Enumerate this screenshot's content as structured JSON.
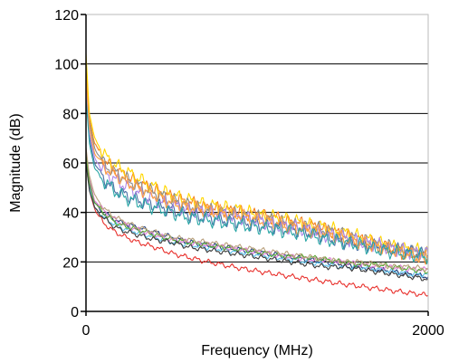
{
  "chart_data": {
    "type": "line",
    "title": "",
    "xlabel": "Frequency (MHz)",
    "ylabel": "Magnitude (dB)",
    "xlim": [
      0,
      2000
    ],
    "ylim": [
      0,
      120
    ],
    "xticks": [
      0,
      2000
    ],
    "yticks": [
      0,
      20,
      40,
      60,
      80,
      100,
      120
    ],
    "grid": "horizontal",
    "legend": "none",
    "series": [
      {
        "color": "#e8302c",
        "x": [
          0,
          10,
          30,
          60,
          100,
          150,
          200,
          300,
          400,
          500,
          600,
          700,
          800,
          900,
          1000,
          1100,
          1200,
          1300,
          1400,
          1500,
          1600,
          1700,
          1800,
          1900,
          2000
        ],
        "y": [
          65,
          54,
          46,
          40,
          36,
          33,
          31,
          28,
          26,
          23.5,
          21.8,
          20.2,
          18.8,
          17.5,
          16.3,
          15.2,
          14.1,
          13.1,
          12.1,
          11.1,
          10.2,
          9.2,
          8.3,
          7.4,
          6.5
        ]
      },
      {
        "color": "#f58220",
        "x": [
          0,
          20,
          50,
          100,
          150,
          200,
          300,
          400,
          500,
          600,
          700,
          800,
          900,
          1000,
          1100,
          1200,
          1300,
          1400,
          1500,
          1600,
          1700,
          1800,
          1900,
          2000
        ],
        "y": [
          98,
          78,
          68,
          62,
          58,
          56,
          52,
          49,
          46,
          44,
          42,
          41,
          40,
          39,
          38,
          36,
          35,
          33,
          31,
          29,
          27,
          25,
          23,
          22
        ]
      },
      {
        "color": "#ffd700",
        "x": [
          0,
          20,
          50,
          100,
          150,
          200,
          300,
          400,
          500,
          600,
          700,
          800,
          900,
          1000,
          1100,
          1200,
          1300,
          1400,
          1500,
          1600,
          1700,
          1800,
          1900,
          2000
        ],
        "y": [
          104,
          80,
          70,
          64,
          60,
          58,
          54,
          50,
          47,
          45,
          43,
          42,
          41,
          39,
          38,
          37,
          35,
          34,
          32,
          30,
          28,
          26,
          25,
          24
        ]
      },
      {
        "color": "#8c8c8c",
        "x": [
          0,
          20,
          50,
          100,
          150,
          200,
          300,
          400,
          500,
          600,
          700,
          800,
          900,
          1000,
          1100,
          1200,
          1300,
          1400,
          1500,
          1600,
          1700,
          1800,
          1900,
          2000
        ],
        "y": [
          92,
          76,
          66,
          60,
          57,
          55,
          51,
          48,
          45,
          43,
          41,
          40,
          39,
          38,
          37,
          35,
          34,
          33,
          31,
          29,
          27,
          26,
          24,
          23
        ]
      },
      {
        "color": "#4a6fa5",
        "x": [
          0,
          20,
          50,
          100,
          150,
          200,
          300,
          400,
          500,
          600,
          700,
          800,
          900,
          1000,
          1100,
          1200,
          1300,
          1400,
          1500,
          1600,
          1700,
          1800,
          1900,
          2000
        ],
        "y": [
          88,
          70,
          60,
          54,
          50,
          48,
          45,
          43,
          41,
          39,
          38,
          37,
          36,
          35,
          34,
          33,
          32,
          30,
          28,
          27,
          26,
          25,
          24,
          23
        ]
      },
      {
        "color": "#1f3d7a",
        "x": [
          0,
          20,
          50,
          100,
          150,
          200,
          300,
          400,
          500,
          600,
          700,
          800,
          900,
          1000,
          1100,
          1200,
          1300,
          1400,
          1500,
          1600,
          1700,
          1800,
          1900,
          2000
        ],
        "y": [
          62,
          52,
          44,
          40,
          38,
          36,
          34,
          32,
          30,
          28,
          27,
          26,
          25,
          24,
          23,
          22,
          21,
          20,
          19,
          18,
          17,
          16,
          15,
          14
        ]
      },
      {
        "color": "#5bc0eb",
        "x": [
          0,
          20,
          50,
          100,
          150,
          200,
          300,
          400,
          500,
          600,
          700,
          800,
          900,
          1000,
          1100,
          1200,
          1300,
          1400,
          1500,
          1600,
          1700,
          1800,
          1900,
          2000
        ],
        "y": [
          60,
          50,
          42,
          38,
          36,
          34,
          32,
          30,
          28,
          27,
          26,
          25,
          24,
          23,
          22,
          21,
          20,
          19,
          18,
          18,
          17,
          16,
          15,
          15
        ]
      },
      {
        "color": "#e07ad8",
        "x": [
          0,
          20,
          50,
          100,
          150,
          200,
          300,
          400,
          500,
          600,
          700,
          800,
          900,
          1000,
          1100,
          1200,
          1300,
          1400,
          1500,
          1600,
          1700,
          1800,
          1900,
          2000
        ],
        "y": [
          64,
          53,
          45,
          41,
          38,
          36,
          33,
          31,
          29,
          28,
          27,
          26,
          25,
          24,
          23,
          22,
          21,
          21,
          20,
          19,
          18,
          18,
          17,
          17
        ]
      },
      {
        "color": "#5aa832",
        "x": [
          0,
          20,
          50,
          100,
          150,
          200,
          300,
          400,
          500,
          600,
          700,
          800,
          900,
          1000,
          1100,
          1200,
          1300,
          1400,
          1500,
          1600,
          1700,
          1800,
          1900,
          2000
        ],
        "y": [
          63,
          52,
          44,
          40,
          37,
          35,
          33,
          31,
          29,
          28,
          27,
          26,
          25,
          24,
          23,
          22,
          22,
          21,
          20,
          19,
          19,
          18,
          17,
          16
        ]
      },
      {
        "color": "#b9a07c",
        "x": [
          0,
          20,
          50,
          100,
          150,
          200,
          300,
          400,
          500,
          600,
          700,
          800,
          900,
          1000,
          1100,
          1200,
          1300,
          1400,
          1500,
          1600,
          1700,
          1800,
          1900,
          2000
        ],
        "y": [
          66,
          55,
          47,
          42,
          39,
          37,
          34,
          32,
          30,
          29,
          28,
          27,
          26,
          25,
          24,
          23,
          22,
          21,
          20,
          20,
          19,
          18,
          18,
          17
        ]
      },
      {
        "color": "#b088e8",
        "x": [
          0,
          20,
          50,
          100,
          150,
          200,
          300,
          400,
          500,
          600,
          700,
          800,
          900,
          1000,
          1100,
          1200,
          1300,
          1400,
          1500,
          1600,
          1700,
          1800,
          1900,
          2000
        ],
        "y": [
          90,
          72,
          62,
          57,
          54,
          52,
          48,
          45,
          43,
          41,
          40,
          39,
          38,
          37,
          35,
          34,
          33,
          31,
          30,
          28,
          27,
          25,
          24,
          23
        ]
      },
      {
        "color": "#ff9f40",
        "x": [
          0,
          20,
          50,
          100,
          150,
          200,
          300,
          400,
          500,
          600,
          700,
          800,
          900,
          1000,
          1100,
          1200,
          1300,
          1400,
          1500,
          1600,
          1700,
          1800,
          1900,
          2000
        ],
        "y": [
          95,
          74,
          64,
          59,
          56,
          54,
          50,
          47,
          44,
          42,
          41,
          40,
          39,
          37,
          36,
          34,
          33,
          32,
          30,
          28,
          26,
          25,
          23,
          22
        ]
      },
      {
        "color": "#2aa6a6",
        "x": [
          0,
          20,
          50,
          100,
          150,
          200,
          300,
          400,
          500,
          600,
          700,
          800,
          900,
          1000,
          1100,
          1200,
          1300,
          1400,
          1500,
          1600,
          1700,
          1800,
          1900,
          2000
        ],
        "y": [
          86,
          68,
          58,
          53,
          50,
          47,
          44,
          42,
          40,
          38,
          37,
          36,
          35,
          34,
          33,
          32,
          31,
          29,
          28,
          27,
          25,
          24,
          23,
          22
        ]
      },
      {
        "color": "#3a3a3a",
        "x": [
          0,
          20,
          50,
          100,
          150,
          200,
          300,
          400,
          500,
          600,
          700,
          800,
          900,
          1000,
          1100,
          1200,
          1300,
          1400,
          1500,
          1600,
          1700,
          1800,
          1900,
          2000
        ],
        "y": [
          60,
          49,
          42,
          38,
          35,
          33,
          31,
          29,
          28,
          26,
          25,
          24,
          23,
          22,
          21,
          20,
          19,
          18,
          18,
          17,
          16,
          15,
          14,
          13
        ]
      }
    ]
  }
}
